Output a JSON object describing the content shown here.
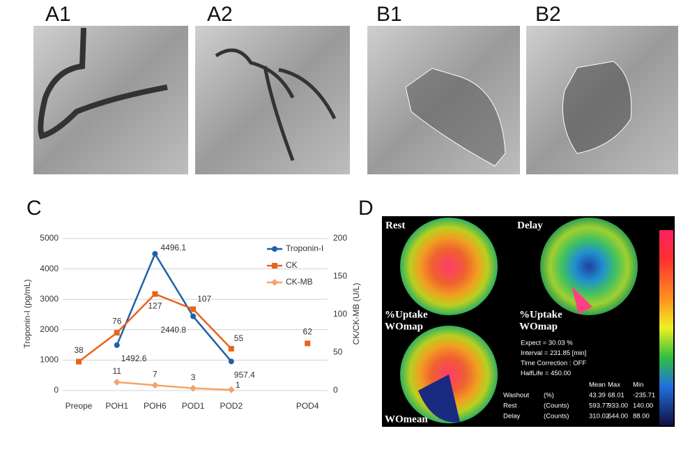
{
  "panels": {
    "a1": "A1",
    "a2": "A2",
    "b1": "B1",
    "b2": "B2",
    "c": "C",
    "d": "D"
  },
  "chart_data": {
    "type": "line",
    "categories": [
      "Preope",
      "POH1",
      "POH6",
      "POD1",
      "POD2",
      null,
      "POD4"
    ],
    "y_label": "Troponin-I (pg/mL)",
    "y2_label": "CK/CK-MB (U/L)",
    "ylim": [
      0,
      5000
    ],
    "yticks": [
      0,
      1000,
      2000,
      3000,
      4000,
      5000
    ],
    "y2lim": [
      0,
      200
    ],
    "y2ticks": [
      0,
      50,
      100,
      150,
      200
    ],
    "grid": true,
    "legend": "top-right",
    "series": [
      {
        "name": "Troponin-I",
        "color": "#1f5fa8",
        "marker": "circle",
        "values": [
          null,
          1492.6,
          4496.1,
          2440.8,
          957.4,
          null,
          null
        ]
      },
      {
        "name": "CK",
        "color": "#e8641b",
        "marker": "square",
        "axis": "y2",
        "values": [
          38,
          76,
          127,
          107,
          55,
          null,
          62
        ]
      },
      {
        "name": "CK-MB",
        "color": "#f4a46a",
        "marker": "diamond",
        "axis": "y2",
        "values": [
          null,
          11,
          7,
          3,
          1,
          null,
          null
        ]
      }
    ]
  },
  "scan": {
    "rest": "Rest",
    "delay": "Delay",
    "uptake": "%Uptake",
    "womap_left": "WOmap",
    "womap_right": "WOmap",
    "womean": "WOmean",
    "info": [
      "Expect = 30.03 %",
      "Interval = 231.85 [min]",
      "Time Correction : OFF",
      "HalfLife = 450.00"
    ],
    "table": {
      "header": [
        "Mean",
        "Max",
        "Min"
      ],
      "rows": [
        [
          "Washout",
          "(%)",
          "43.39",
          "68.01",
          "-235.71"
        ],
        [
          "Rest",
          "(Counts)",
          "593.77",
          "933.00",
          "140.00"
        ],
        [
          "Delay",
          "(Counts)",
          "310.02",
          "644.00",
          "88.00"
        ]
      ]
    }
  }
}
